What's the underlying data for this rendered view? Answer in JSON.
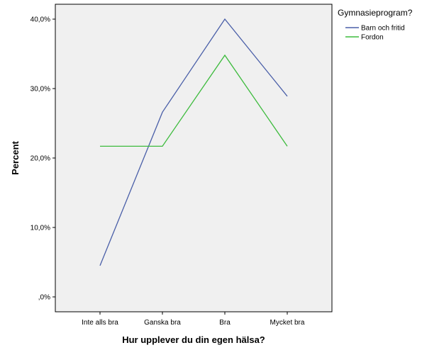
{
  "chart_data": {
    "type": "line",
    "xlabel": "Hur upplever du din egen hälsa?",
    "ylabel": "Percent",
    "categories": [
      "Inte alls bra",
      "Ganska bra",
      "Bra",
      "Mycket bra"
    ],
    "ylim": [
      0,
      42
    ],
    "yticks": [
      0,
      10,
      20,
      30,
      40
    ],
    "ytick_labels": [
      ",0%",
      "10,0%",
      "20,0%",
      "30,0%",
      "40,0%"
    ],
    "grid": false,
    "legend": {
      "title": "Gymnasieprogram?",
      "placement": "top-right, outside plot area"
    },
    "series": [
      {
        "name": "Barn och fritid",
        "color": "#4a5fa8",
        "values": [
          4.5,
          26.6,
          40.0,
          28.9
        ]
      },
      {
        "name": "Fordon",
        "color": "#3dbb3d",
        "values": [
          21.7,
          21.7,
          34.8,
          21.7
        ]
      }
    ]
  }
}
